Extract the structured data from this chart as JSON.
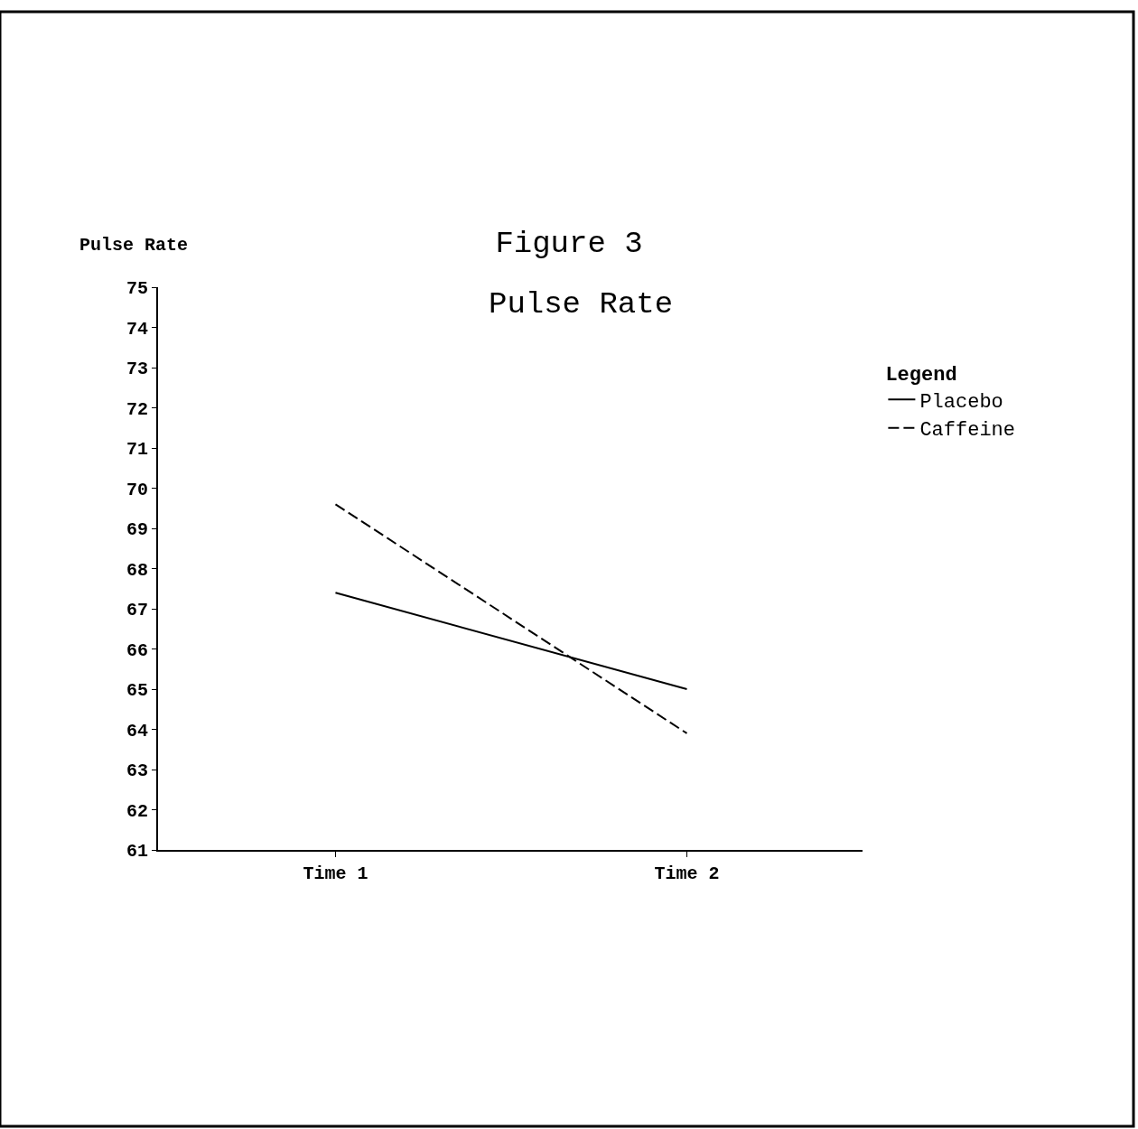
{
  "chart_data": {
    "type": "line",
    "title": "Figure 3",
    "subtitle": "Pulse Rate",
    "ylabel": "Pulse Rate",
    "legend_title": "Legend",
    "categories": [
      "Time 1",
      "Time 2"
    ],
    "series": [
      {
        "name": "Placebo",
        "color": "#000000",
        "line_style": "solid",
        "values": [
          67.4,
          65.0
        ]
      },
      {
        "name": "Caffeine",
        "color": "#000000",
        "line_style": "dashed",
        "values": [
          69.6,
          63.9
        ]
      }
    ],
    "ylim": [
      61,
      75
    ],
    "yticks": [
      61,
      62,
      63,
      64,
      65,
      66,
      67,
      68,
      69,
      70,
      71,
      72,
      73,
      74,
      75
    ],
    "grid": false,
    "legend": "right",
    "marker": "none"
  }
}
